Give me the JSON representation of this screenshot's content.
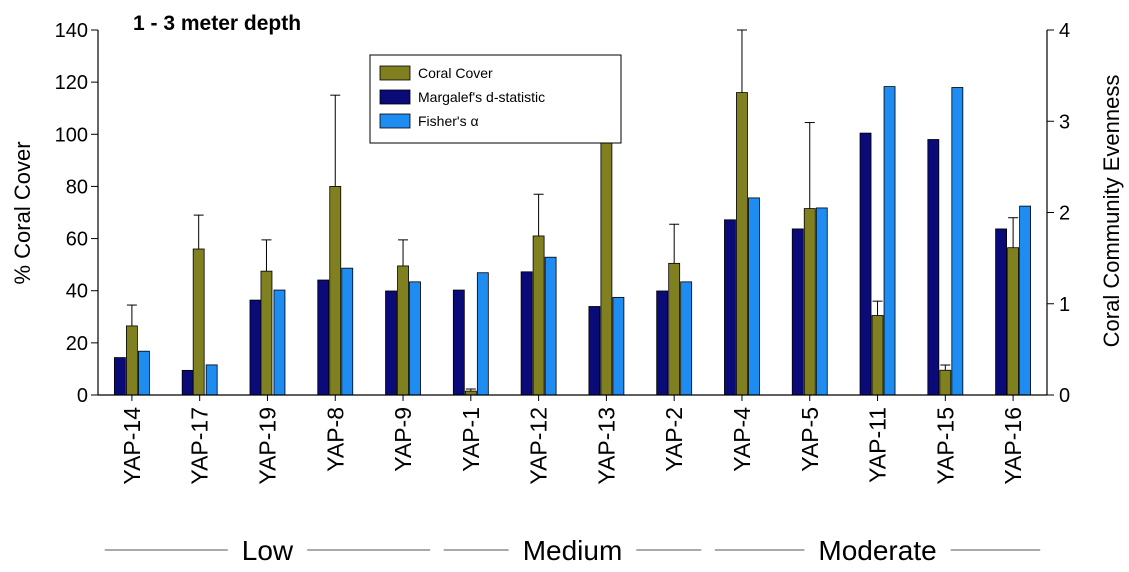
{
  "chart_data": {
    "type": "bar",
    "title": "1 - 3 meter depth",
    "categories": [
      "YAP-14",
      "YAP-17",
      "YAP-19",
      "YAP-8",
      "YAP-9",
      "YAP-1",
      "YAP-12",
      "YAP-13",
      "YAP-2",
      "YAP-4",
      "YAP-5",
      "YAP-11",
      "YAP-15",
      "YAP-16"
    ],
    "ylabel_left": "% Coral Cover",
    "ylabel_right": "Coral Community Evenness",
    "ylim_left": [
      0,
      140
    ],
    "ylim_right": [
      0,
      4
    ],
    "yticks_left": [
      "0",
      "20",
      "40",
      "60",
      "80",
      "100",
      "120",
      "140"
    ],
    "yticks_right": [
      "0",
      "1",
      "2",
      "3",
      "4"
    ],
    "grid": false,
    "legend_position": "top-center",
    "series": [
      {
        "name": "Coral Cover",
        "axis": "left",
        "color": "#808020",
        "values": [
          26.5,
          null,
          null,
          80,
          49.5,
          1.5,
          61,
          101,
          50.5,
          116,
          71.5,
          30.5,
          9.5,
          56.5
        ],
        "error": [
          8,
          null,
          null,
          35,
          10,
          0.8,
          16,
          29,
          15,
          24,
          33,
          5.5,
          2,
          11.5
        ]
      },
      {
        "name": "Margalef's d-statistic",
        "axis": "right",
        "color": "#0a0a78",
        "values": [
          0.41,
          0.27,
          1.04,
          1.26,
          1.14,
          1.15,
          1.35,
          0.97,
          1.14,
          1.92,
          1.82,
          2.87,
          2.8,
          1.82
        ]
      },
      {
        "name": "Fisher's α",
        "axis": "right",
        "color": "#1e8cf0",
        "values": [
          0.48,
          0.33,
          1.15,
          1.39,
          1.24,
          1.34,
          1.51,
          1.07,
          1.24,
          2.16,
          2.05,
          3.38,
          3.37,
          2.07
        ]
      }
    ],
    "overlay_coral": [
      {
        "category": "YAP-17",
        "value": 56,
        "error": 13
      },
      {
        "category": "YAP-19",
        "value": 47.5,
        "error": 12
      }
    ],
    "groups": [
      {
        "label": "Low",
        "from": 0,
        "to": 4
      },
      {
        "label": "Medium",
        "from": 5,
        "to": 8
      },
      {
        "label": "Moderate",
        "from": 9,
        "to": 13
      }
    ]
  }
}
